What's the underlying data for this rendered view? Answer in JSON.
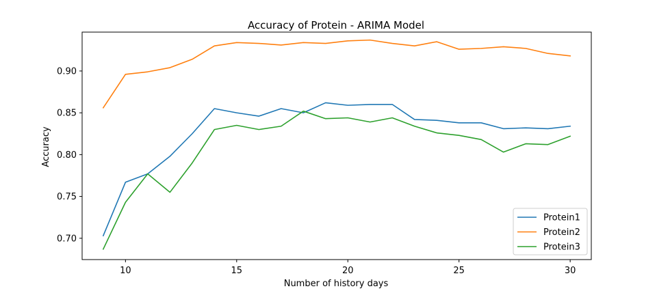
{
  "chart_data": {
    "type": "line",
    "title": "Accuracy of Protein - ARIMA Model",
    "xlabel": "Number of history days",
    "ylabel": "Accuracy",
    "x": [
      9,
      10,
      11,
      12,
      13,
      14,
      15,
      16,
      17,
      18,
      19,
      20,
      21,
      22,
      23,
      24,
      25,
      26,
      27,
      28,
      29,
      30
    ],
    "xlim": [
      8.05,
      30.95
    ],
    "ylim": [
      0.6745,
      0.9465
    ],
    "xticks": [
      10,
      15,
      20,
      25,
      30
    ],
    "xtick_labels": [
      "10",
      "15",
      "20",
      "25",
      "30"
    ],
    "yticks": [
      0.7,
      0.75,
      0.8,
      0.85,
      0.9
    ],
    "ytick_labels": [
      "0.70",
      "0.75",
      "0.80",
      "0.85",
      "0.90"
    ],
    "grid": false,
    "legend_position": "lower-right",
    "series": [
      {
        "name": "Protein1",
        "color": "#1f77b4",
        "values": [
          0.703,
          0.767,
          0.777,
          0.798,
          0.825,
          0.855,
          0.85,
          0.846,
          0.855,
          0.85,
          0.862,
          0.859,
          0.86,
          0.86,
          0.842,
          0.841,
          0.838,
          0.838,
          0.831,
          0.832,
          0.831,
          0.834
        ]
      },
      {
        "name": "Protein2",
        "color": "#ff7f0e",
        "values": [
          0.856,
          0.896,
          0.899,
          0.904,
          0.914,
          0.93,
          0.934,
          0.933,
          0.931,
          0.934,
          0.933,
          0.936,
          0.937,
          0.933,
          0.93,
          0.935,
          0.926,
          0.927,
          0.929,
          0.927,
          0.921,
          0.918
        ]
      },
      {
        "name": "Protein3",
        "color": "#2ca02c",
        "values": [
          0.687,
          0.743,
          0.777,
          0.755,
          0.79,
          0.83,
          0.835,
          0.83,
          0.834,
          0.852,
          0.843,
          0.844,
          0.839,
          0.844,
          0.834,
          0.826,
          0.823,
          0.818,
          0.803,
          0.813,
          0.812,
          0.822
        ]
      }
    ]
  }
}
